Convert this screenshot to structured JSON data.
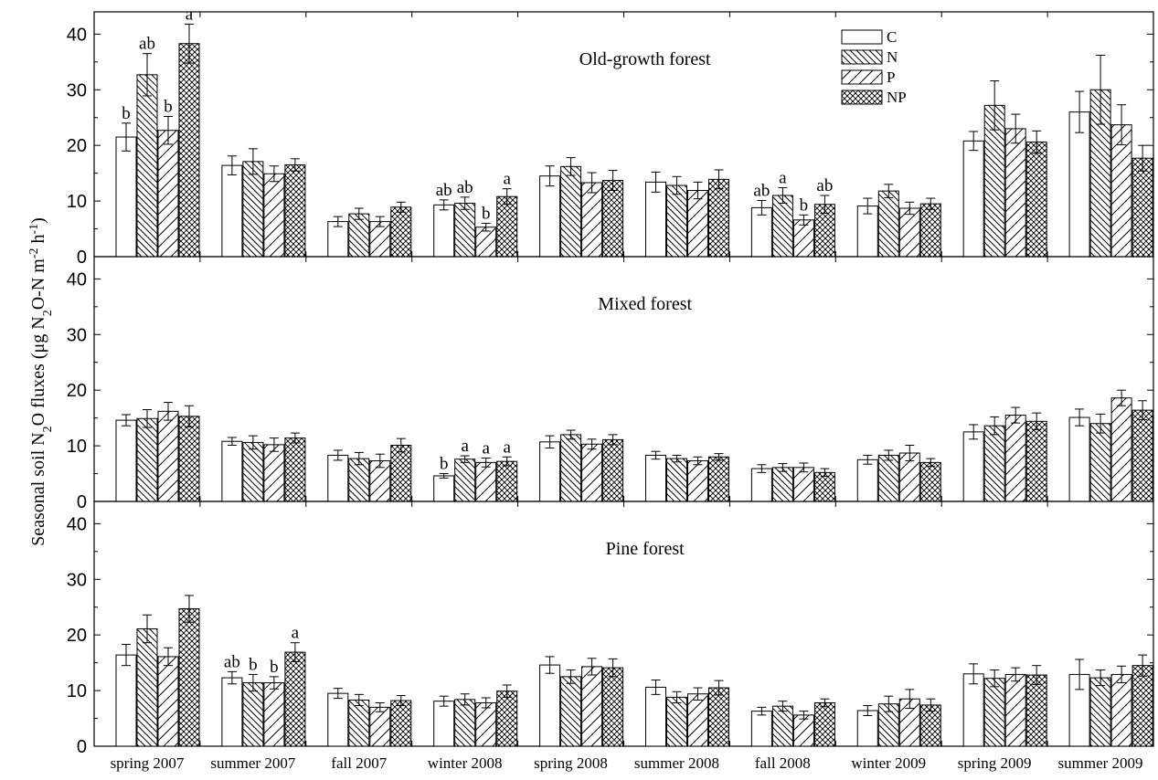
{
  "chart_data": {
    "type": "bar",
    "ylabel": "Seasonal soil N2O fluxes (μg N2O-N m-2 h-1)",
    "ylabel_parts": {
      "prefix": "Seasonal soil N",
      "sub1": "2",
      "mid1": "O fluxes (μg N",
      "sub2": "2",
      "mid2": "O-N m",
      "sup1": "-2",
      "mid3": " h",
      "sup2": "-1",
      "suffix": ")"
    },
    "categories": [
      "spring 2007",
      "summer 2007",
      "fall 2007",
      "winter 2008",
      "spring 2008",
      "summer 2008",
      "fall 2008",
      "winter 2009",
      "spring 2009",
      "summer 2009"
    ],
    "series_names": [
      "C",
      "N",
      "P",
      "NP"
    ],
    "legend_position": "top-right of top panel",
    "ylim": [
      0,
      44
    ],
    "yticks": [
      0,
      10,
      20,
      30,
      40
    ],
    "panels": [
      {
        "title": "Old-growth forest",
        "values": [
          [
            21.5,
            32.7,
            22.7,
            38.3
          ],
          [
            16.4,
            17.1,
            14.9,
            16.5
          ],
          [
            6.3,
            7.7,
            6.3,
            8.9
          ],
          [
            9.3,
            9.6,
            5.3,
            10.8
          ],
          [
            14.5,
            16.2,
            13.3,
            13.7
          ],
          [
            13.4,
            12.8,
            11.9,
            13.9
          ],
          [
            8.8,
            11.0,
            6.6,
            9.4
          ],
          [
            9.1,
            11.8,
            8.7,
            9.5
          ],
          [
            20.8,
            27.2,
            23.0,
            20.6
          ],
          [
            26.0,
            30.0,
            23.7,
            17.7
          ]
        ],
        "errors": [
          [
            2.5,
            3.8,
            2.5,
            3.5
          ],
          [
            1.7,
            2.3,
            1.4,
            1.1
          ],
          [
            0.9,
            1.0,
            0.9,
            0.9
          ],
          [
            0.9,
            1.1,
            0.7,
            1.4
          ],
          [
            1.8,
            1.6,
            1.8,
            1.8
          ],
          [
            1.8,
            1.6,
            1.5,
            1.7
          ],
          [
            1.3,
            1.4,
            0.9,
            1.6
          ],
          [
            1.4,
            1.2,
            1.1,
            1.0
          ],
          [
            1.7,
            4.4,
            2.6,
            2.0
          ],
          [
            3.7,
            6.2,
            3.6,
            2.3
          ]
        ],
        "sig_labels": [
          [
            "b",
            "ab",
            "b",
            "a"
          ],
          [
            "",
            "",
            "",
            ""
          ],
          [
            "",
            "",
            "",
            ""
          ],
          [
            "ab",
            "ab",
            "b",
            "a"
          ],
          [
            "",
            "",
            "",
            ""
          ],
          [
            "",
            "",
            "",
            ""
          ],
          [
            "ab",
            "a",
            "b",
            "ab"
          ],
          [
            "",
            "",
            "",
            ""
          ],
          [
            "",
            "",
            "",
            ""
          ],
          [
            "",
            "",
            "",
            ""
          ]
        ]
      },
      {
        "title": "Mixed forest",
        "values": [
          [
            14.6,
            14.9,
            16.2,
            15.3
          ],
          [
            10.8,
            10.6,
            10.2,
            11.4
          ],
          [
            8.3,
            7.7,
            7.3,
            10.1
          ],
          [
            4.6,
            7.6,
            7.0,
            7.2
          ],
          [
            10.7,
            12.0,
            10.3,
            11.1
          ],
          [
            8.3,
            7.7,
            7.3,
            8.0
          ],
          [
            5.9,
            6.1,
            6.1,
            5.2
          ],
          [
            7.5,
            8.3,
            8.7,
            7.0
          ],
          [
            12.5,
            13.6,
            15.5,
            14.4
          ],
          [
            15.1,
            14.0,
            18.6,
            16.4
          ]
        ],
        "errors": [
          [
            1.0,
            1.6,
            1.6,
            1.9
          ],
          [
            0.7,
            1.2,
            1.2,
            0.9
          ],
          [
            0.9,
            1.1,
            1.2,
            1.2
          ],
          [
            0.4,
            0.6,
            0.8,
            0.8
          ],
          [
            1.1,
            0.8,
            0.9,
            0.9
          ],
          [
            0.7,
            0.6,
            0.7,
            0.6
          ],
          [
            0.7,
            0.7,
            0.8,
            0.7
          ],
          [
            0.8,
            0.9,
            1.4,
            0.7
          ],
          [
            1.3,
            1.6,
            1.4,
            1.5
          ],
          [
            1.5,
            1.7,
            1.4,
            1.7
          ]
        ],
        "sig_labels": [
          [
            "",
            "",
            "",
            ""
          ],
          [
            "",
            "",
            "",
            ""
          ],
          [
            "",
            "",
            "",
            ""
          ],
          [
            "b",
            "a",
            "a",
            "a"
          ],
          [
            "",
            "",
            "",
            ""
          ],
          [
            "",
            "",
            "",
            ""
          ],
          [
            "",
            "",
            "",
            ""
          ],
          [
            "",
            "",
            "",
            ""
          ],
          [
            "",
            "",
            "",
            ""
          ],
          [
            "",
            "",
            "",
            ""
          ]
        ]
      },
      {
        "title": "Pine forest",
        "values": [
          [
            16.4,
            21.1,
            16.1,
            24.7
          ],
          [
            12.3,
            11.4,
            11.4,
            16.9
          ],
          [
            9.5,
            8.3,
            7.0,
            8.2
          ],
          [
            8.1,
            8.4,
            7.8,
            9.9
          ],
          [
            14.6,
            12.5,
            14.3,
            14.1
          ],
          [
            10.6,
            8.8,
            9.4,
            10.5
          ],
          [
            6.3,
            7.2,
            5.6,
            7.8
          ],
          [
            6.4,
            7.6,
            8.5,
            7.4
          ],
          [
            13.0,
            12.2,
            12.9,
            12.8
          ],
          [
            12.9,
            12.3,
            12.9,
            14.5
          ]
        ],
        "errors": [
          [
            1.9,
            2.5,
            1.6,
            2.4
          ],
          [
            1.1,
            1.5,
            1.1,
            1.7
          ],
          [
            0.9,
            1.0,
            0.8,
            0.9
          ],
          [
            0.9,
            1.0,
            0.9,
            1.1
          ],
          [
            1.5,
            1.2,
            1.5,
            1.6
          ],
          [
            1.3,
            1.0,
            1.1,
            1.3
          ],
          [
            0.7,
            0.9,
            0.7,
            0.7
          ],
          [
            0.9,
            1.4,
            1.7,
            1.1
          ],
          [
            1.8,
            1.5,
            1.2,
            1.7
          ],
          [
            2.7,
            1.4,
            1.5,
            1.9
          ]
        ],
        "sig_labels": [
          [
            "",
            "",
            "",
            ""
          ],
          [
            "ab",
            "b",
            "b",
            "a"
          ],
          [
            "",
            "",
            "",
            ""
          ],
          [
            "",
            "",
            "",
            ""
          ],
          [
            "",
            "",
            "",
            ""
          ],
          [
            "",
            "",
            "",
            ""
          ],
          [
            "",
            "",
            "",
            ""
          ],
          [
            "",
            "",
            "",
            ""
          ],
          [
            "",
            "",
            "",
            ""
          ],
          [
            "",
            "",
            "",
            ""
          ]
        ]
      }
    ]
  }
}
